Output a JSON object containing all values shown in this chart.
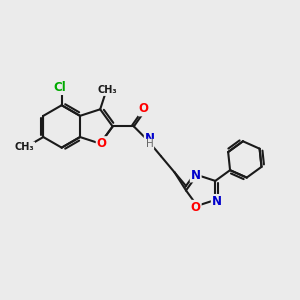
{
  "background_color": "#ebebeb",
  "bond_color": "#1a1a1a",
  "oxygen_color": "#ff0000",
  "nitrogen_color": "#0000cc",
  "chlorine_color": "#00aa00",
  "line_width": 1.5,
  "font_size_atom": 8.5,
  "font_size_small": 7.0,
  "xlim": [
    0,
    10
  ],
  "ylim": [
    0,
    10
  ]
}
